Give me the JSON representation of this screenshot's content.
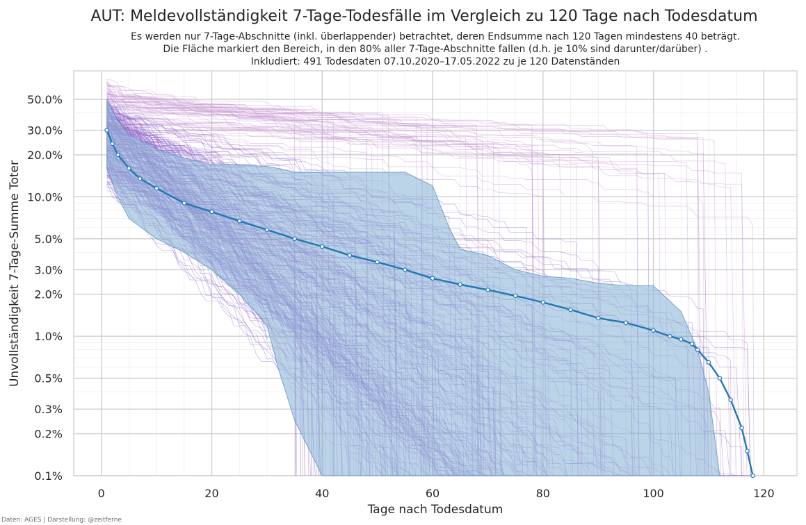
{
  "chart_data": {
    "type": "line",
    "title": "AUT: Meldevollständigkeit 7-Tage-Todesfälle im Vergleich zu 120 Tage nach Todesdatum",
    "subtitle_lines": [
      "Es werden nur 7-Tage-Abschnitte (inkl. überlappender) betrachtet, deren Endsumme nach 120 Tagen mindestens 40 beträgt.",
      "Die Fläche markiert den Bereich, in den 80% aller 7-Tage-Abschnitte fallen (d.h. je 10% sind darunter/darüber) .",
      "Inkludiert: 491 Todesdaten 07.10.2020–17.05.2022 zu je 120 Datenständen"
    ],
    "xlabel": "Tage nach Todesdatum",
    "ylabel": "Unvollständigkeit 7-Tage-Summe Toter",
    "credit": "Daten: AGES | Darstellung: @zeitferne",
    "xlim": [
      -5,
      126
    ],
    "ylim": [
      0.1,
      80
    ],
    "yscale": "log",
    "x_ticks": [
      0,
      20,
      40,
      60,
      80,
      100,
      120
    ],
    "x_tick_labels": [
      "0",
      "20",
      "40",
      "60",
      "80",
      "100",
      "120"
    ],
    "y_ticks": [
      0.1,
      0.2,
      0.3,
      0.5,
      1,
      2,
      3,
      5,
      10,
      20,
      30,
      50
    ],
    "y_tick_labels": [
      "0.1%",
      "0.2%",
      "0.3%",
      "0.5%",
      "1.0%",
      "2.0%",
      "3.0%",
      "5.0%",
      "10.0%",
      "20.0%",
      "30.0%",
      "50.0%"
    ],
    "grid": true,
    "colors": {
      "band": "#8fb8d8",
      "band_edge": "#5b93c4",
      "median": "#1f77b4",
      "median_marker": "#ffffff",
      "curves": "#8a5cc8",
      "outer_curves": "#c99ad6"
    },
    "band_80pct": {
      "x": [
        1,
        3,
        5,
        10,
        15,
        20,
        25,
        30,
        32,
        35,
        40,
        45,
        50,
        55,
        60,
        63,
        65,
        70,
        75,
        80,
        85,
        90,
        95,
        100,
        105,
        108,
        110,
        112
      ],
      "lower": [
        16,
        10,
        7,
        5,
        4,
        3,
        2,
        1.2,
        0.6,
        0.25,
        0.1,
        0.1,
        0.1,
        0.1,
        0.1,
        0.1,
        0.1,
        0.1,
        0.1,
        0.1,
        0.1,
        0.1,
        0.1,
        0.1,
        0.1,
        0.1,
        0.1,
        0.1
      ],
      "upper": [
        50,
        35,
        28,
        22,
        19,
        17,
        17,
        16.5,
        16,
        15,
        15,
        15,
        15,
        15,
        12,
        6,
        4.2,
        3.8,
        3.0,
        2.7,
        2.6,
        2.4,
        2.3,
        2.3,
        1.5,
        0.8,
        0.4,
        0.1
      ]
    },
    "median": {
      "x": [
        1,
        2,
        3,
        5,
        7,
        10,
        15,
        20,
        25,
        30,
        35,
        40,
        45,
        50,
        55,
        60,
        65,
        70,
        75,
        80,
        85,
        90,
        95,
        100,
        103,
        105,
        107,
        108,
        110,
        112,
        114,
        116,
        117,
        118
      ],
      "values": [
        30,
        24,
        20,
        16,
        13.5,
        11.5,
        9,
        7.8,
        6.7,
        5.8,
        5.0,
        4.4,
        3.8,
        3.4,
        3.0,
        2.6,
        2.35,
        2.15,
        1.95,
        1.75,
        1.55,
        1.35,
        1.25,
        1.1,
        1.0,
        0.95,
        0.88,
        0.8,
        0.65,
        0.5,
        0.35,
        0.22,
        0.15,
        0.1
      ]
    },
    "n_individual_curves": 491
  }
}
